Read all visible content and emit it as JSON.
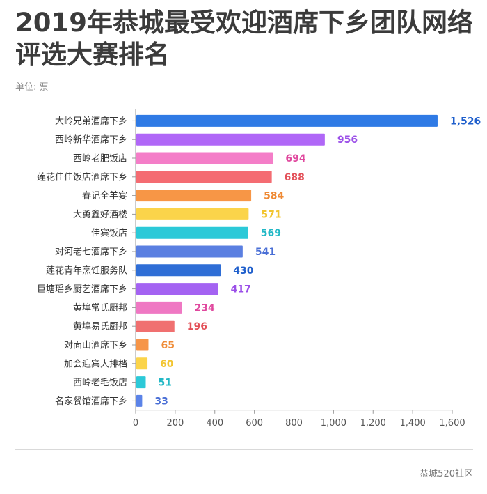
{
  "header": {
    "title": "2019年恭城最受欢迎酒席下乡团队网络评选大赛排名",
    "unit": "单位: 票"
  },
  "footer": {
    "source": "恭城520社区"
  },
  "chart_data": {
    "type": "bar",
    "orientation": "horizontal",
    "title": "2019年恭城最受欢迎酒席下乡团队网络评选大赛排名",
    "xlabel": "",
    "ylabel": "",
    "xlim": [
      0,
      1600
    ],
    "ticks": [
      0,
      200,
      400,
      600,
      800,
      1000,
      1200,
      1400,
      1600
    ],
    "tick_labels": [
      "0",
      "200",
      "400",
      "600",
      "800",
      "1,000",
      "1,200",
      "1,400",
      "1,600"
    ],
    "grid": false,
    "categories": [
      "大岭兄弟酒席下乡",
      "西岭新华酒席下乡",
      "西岭老肥饭店",
      "莲花佳佳饭店酒席下乡",
      "春记全羊宴",
      "大勇鑫好酒楼",
      "佳宾饭店",
      "对河老七酒席下乡",
      "莲花青年烹饪服务队",
      "巨塘瑶乡厨艺酒席下乡",
      "黄埠常氏厨邦",
      "黄埠易氏厨邦",
      "对面山酒席下乡",
      "加会迎宾大排档",
      "西岭老毛饭店",
      "名家餐馆酒席下乡"
    ],
    "values": [
      1526,
      956,
      694,
      688,
      584,
      571,
      569,
      541,
      430,
      417,
      234,
      196,
      65,
      60,
      51,
      33
    ],
    "value_labels": [
      "1,526",
      "956",
      "694",
      "688",
      "584",
      "571",
      "569",
      "541",
      "430",
      "417",
      "234",
      "196",
      "65",
      "60",
      "51",
      "33"
    ],
    "colors": [
      "#2f7ae5",
      "#b067f7",
      "#f47ec8",
      "#f46c72",
      "#f79646",
      "#fbd44a",
      "#2cc9d8",
      "#5a7fe1",
      "#2f6ed6",
      "#a463f2",
      "#ef78c3",
      "#f07070",
      "#f69548",
      "#fbd44a",
      "#2cc9d8",
      "#5b83e8"
    ],
    "label_colors": [
      "#1f5fcc",
      "#9b4fe8",
      "#e0489e",
      "#e35058",
      "#ef8a35",
      "#f2c531",
      "#22b8c6",
      "#4a6fd6",
      "#1f5fcc",
      "#9b4fe8",
      "#e0489e",
      "#e35058",
      "#ef8a35",
      "#f2c531",
      "#22b8c6",
      "#4a6fd6"
    ]
  }
}
